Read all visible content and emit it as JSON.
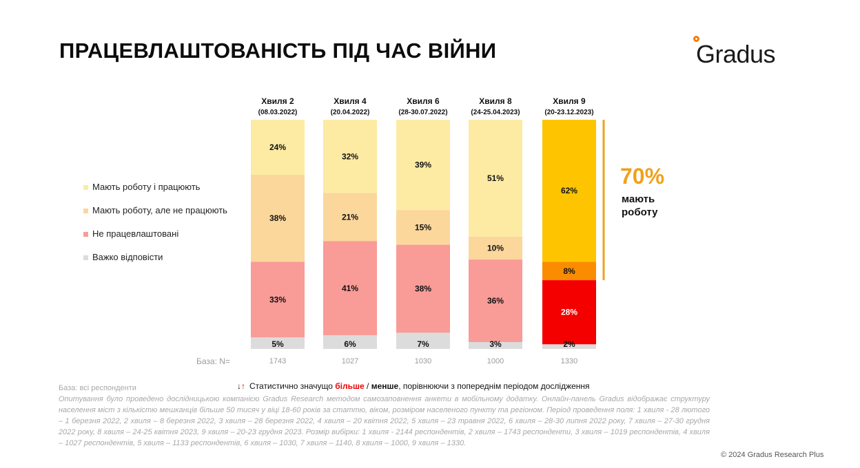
{
  "title": "ПРАЦЕВЛАШТОВАНІСТЬ ПІД ЧАС ВІЙНИ",
  "logo": "Gradus",
  "colors": {
    "employed_working": "#fdeba3",
    "employed_not_working": "#fbd79b",
    "unemployed": "#f99b97",
    "hard_to_say": "#dcdcdc",
    "w9_employed_working": "#fec400",
    "w9_employed_not_working": "#fb8c00",
    "w9_unemployed": "#f40000",
    "accent": "#f0a11b"
  },
  "legend": [
    {
      "label": "Мають роботу і працюють",
      "color": "#fdeba3"
    },
    {
      "label": "Мають роботу, але не працюють",
      "color": "#fbd79b"
    },
    {
      "label": "Не працевлаштовані",
      "color": "#f99b97"
    },
    {
      "label": "Важко відповісти",
      "color": "#dcdcdc"
    }
  ],
  "chart_data": {
    "type": "bar",
    "stacked": true,
    "ylim": [
      0,
      100
    ],
    "categories": [
      "Хвиля 2",
      "Хвиля 4",
      "Хвиля 6",
      "Хвиля 8",
      "Хвиля 9"
    ],
    "category_dates": [
      "(08.03.2022)",
      "(20.04.2022)",
      "(28-30.07.2022)",
      "(24-25.04.2023)",
      "(20-23.12.2023)"
    ],
    "series": [
      {
        "name": "Мають роботу і працюють",
        "values": [
          24,
          32,
          39,
          51,
          62
        ],
        "labels": [
          "24%",
          "32%",
          "39%",
          "51%",
          "62%"
        ]
      },
      {
        "name": "Мають роботу, але не працюють",
        "values": [
          38,
          21,
          15,
          10,
          8
        ],
        "labels": [
          "38%",
          "21%",
          "15%",
          "10%",
          "8%"
        ]
      },
      {
        "name": "Не працевлаштовані",
        "values": [
          33,
          41,
          38,
          36,
          28
        ],
        "labels": [
          "33%",
          "41%",
          "38%",
          "36%",
          "28%"
        ]
      },
      {
        "name": "Важко відповісти",
        "values": [
          5,
          6,
          7,
          3,
          2
        ],
        "labels": [
          "5%",
          "6%",
          "7%",
          "3%",
          "2%"
        ]
      }
    ],
    "base_label": "База: N=",
    "base_values": [
      "1743",
      "1027",
      "1030",
      "1000",
      "1330"
    ],
    "highlight": {
      "value": "70%",
      "label": "мають\nроботу"
    }
  },
  "significance_note": {
    "prefix": "Статистично значущо ",
    "more": "більше",
    "sep": " / ",
    "less": "менше",
    "suffix": ", порівнюючи з попереднім періодом дослідження"
  },
  "footnote": {
    "base": "База: всі респонденти",
    "text": "Опитування було проведено дослідницькою компанією Gradus Research методом самозаповнення анкети в мобільному додатку. Онлайн-панель Gradus відображає структуру населення міст з кількістю мешканців більше 50 тисяч у віці 18-60 років за статтю, віком, розміром населеного пункту та регіоном. Період проведення поля: 1 хвиля - 28 лютого – 1 березня 2022, 2 хвиля – 8 березня 2022, 3 хвиля – 28 березня 2022, 4 хвиля – 20 квітня 2022, 5 хвиля – 23 травня 2022, 6 хвиля – 28-30 липня 2022 року, 7 хвиля – 27-30 грудня 2022 року, 8 хвиля – 24-25 квітня 2023, 9 хвиля – 20-23 грудня 2023. Розмір вибірки: 1 хвиля - 2144 респондентів, 2 хвиля – 1743 респонденти, 3 хвиля – 1019 респондентів, 4 хвиля – 1027 респондентів, 5 хвиля – 1133 респондентів, 6 хвиля – 1030, 7 хвиля – 1140, 8 хвиля – 1000, 9 хвиля – 1330."
  },
  "copyright": "© 2024 Gradus Research Plus"
}
